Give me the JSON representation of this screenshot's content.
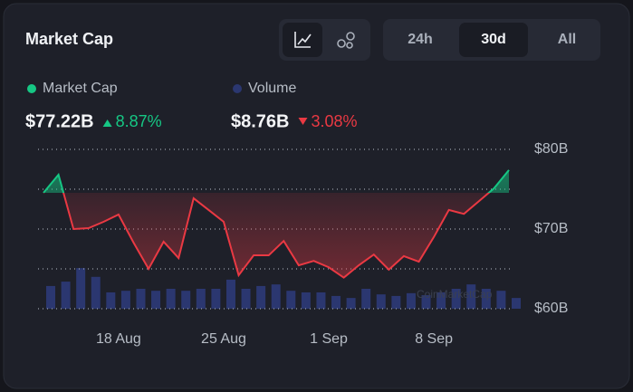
{
  "header": {
    "title": "Market Cap",
    "ranges": [
      "24h",
      "30d",
      "All"
    ],
    "active_range": "30d",
    "watermark": "CoinMarketCap"
  },
  "stats": [
    {
      "name": "Market Cap",
      "value": "$77.22B",
      "change": "8.87%",
      "direction": "up"
    },
    {
      "name": "Volume",
      "value": "$8.76B",
      "change": "3.08%",
      "direction": "down"
    }
  ],
  "chart_data": {
    "type": "line",
    "categories": [
      null,
      null,
      null,
      null,
      null,
      "18 Aug",
      null,
      null,
      null,
      null,
      null,
      null,
      "25 Aug",
      null,
      null,
      null,
      null,
      null,
      null,
      "1 Sep",
      null,
      null,
      null,
      null,
      null,
      null,
      "8 Sep",
      null,
      null,
      null,
      null,
      null
    ],
    "series": [
      {
        "name": "Market Cap",
        "color": "#16c784",
        "down_color": "#ea3943",
        "values": [
          74.55,
          76.82,
          70.0,
          70.11,
          70.91,
          71.82,
          68.3,
          65.0,
          68.41,
          66.36,
          73.86,
          72.39,
          70.91,
          64.2,
          66.7,
          66.7,
          68.5,
          65.45,
          66.0,
          65.2,
          63.9,
          65.45,
          66.8,
          64.9,
          66.6,
          65.9,
          69.0,
          72.4,
          71.9,
          73.5,
          75.1,
          77.4
        ]
      },
      {
        "name": "Volume",
        "color": "#2b3770",
        "axis": "y2",
        "values": [
          5.7,
          6.8,
          10.2,
          8.0,
          4.1,
          4.5,
          5.0,
          4.5,
          5.0,
          4.5,
          5.0,
          5.0,
          7.3,
          5.0,
          5.7,
          6.1,
          4.5,
          4.1,
          4.1,
          3.2,
          2.7,
          5.0,
          3.6,
          3.2,
          3.9,
          3.4,
          4.1,
          5.0,
          6.1,
          5.0,
          4.5,
          2.7
        ]
      }
    ],
    "ylim": [
      60,
      80
    ],
    "yticks": [
      {
        "value": 60,
        "label": "$60B"
      },
      {
        "value": 70,
        "label": "$70B"
      },
      {
        "value": 80,
        "label": "$80B"
      }
    ],
    "ygrid": [
      60,
      65,
      70,
      75,
      80
    ],
    "y2lim": [
      0,
      40
    ]
  }
}
